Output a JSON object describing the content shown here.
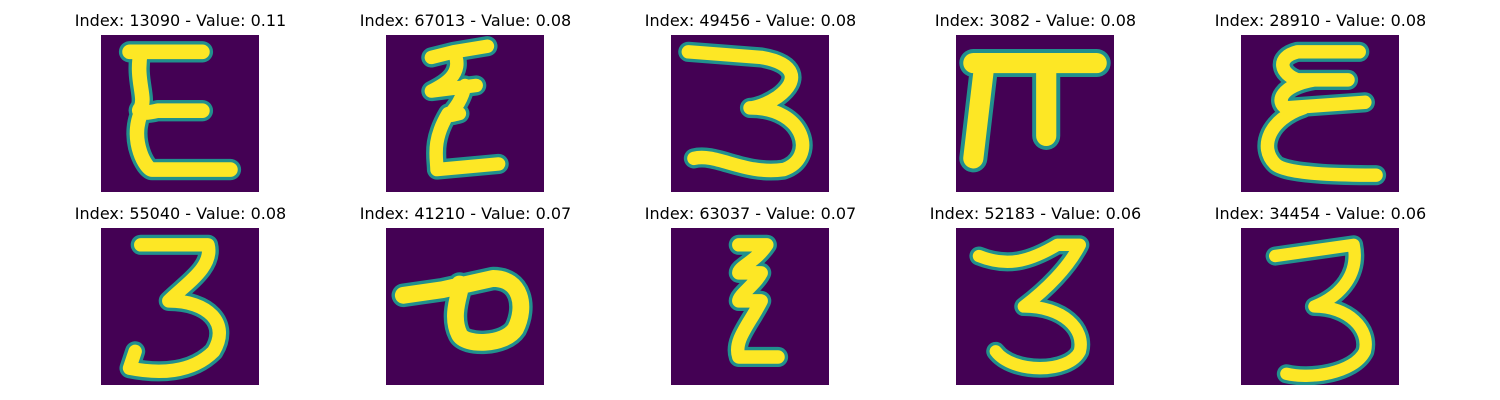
{
  "panels": [
    {
      "title": "Index: 13090 - Value: 0.11",
      "glyph": "E-curly"
    },
    {
      "title": "Index: 67013 - Value: 0.08",
      "glyph": "zigzag"
    },
    {
      "title": "Index: 49456 - Value: 0.08",
      "glyph": "three-wide"
    },
    {
      "title": "Index: 3082 - Value: 0.08",
      "glyph": "pi"
    },
    {
      "title": "Index: 28910 - Value: 0.08",
      "glyph": "epsilon"
    },
    {
      "title": "Index: 55040 - Value: 0.08",
      "glyph": "three"
    },
    {
      "title": "Index: 41210 - Value: 0.07",
      "glyph": "loop-p"
    },
    {
      "title": "Index: 63037 - Value: 0.07",
      "glyph": "zigzag-small"
    },
    {
      "title": "Index: 52183 - Value: 0.06",
      "glyph": "three"
    },
    {
      "title": "Index: 34454 - Value: 0.06",
      "glyph": "three-tall"
    }
  ],
  "colors": {
    "background": "#440154",
    "stroke_outer": "#21908d",
    "stroke_mid": "#5ec962",
    "stroke_core": "#fde725"
  }
}
